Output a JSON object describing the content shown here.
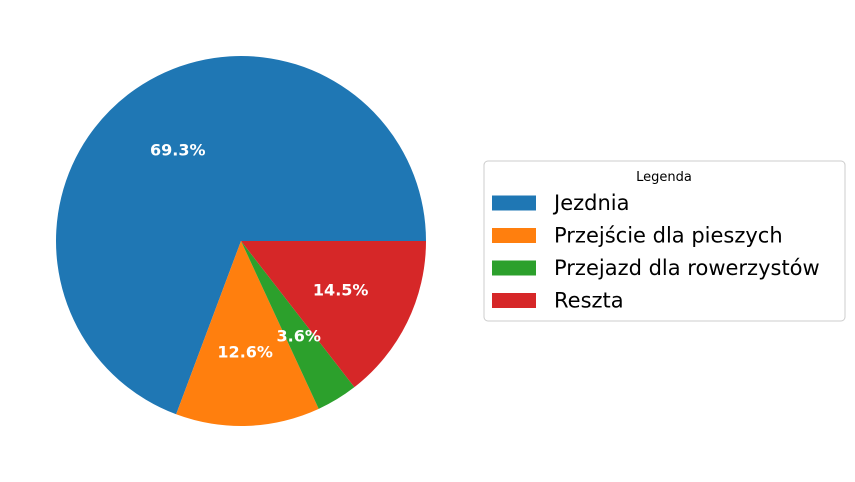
{
  "chart_data": {
    "type": "pie",
    "categories": [
      "Jezdnia",
      "Przejście dla pieszych",
      "Przejazd dla rowerzystów",
      "Reszta"
    ],
    "values": [
      69.3,
      12.6,
      3.6,
      14.5
    ],
    "labels": [
      "69.3%",
      "12.6%",
      "3.6%",
      "14.5%"
    ],
    "colors": [
      "#1f77b4",
      "#ff7f0e",
      "#2ca02c",
      "#d62728"
    ],
    "start_angle_deg": 0,
    "direction": "counterclockwise",
    "legend": {
      "title": "Legenda",
      "placement": "right",
      "entries": [
        "Jezdnia",
        "Przejście dla pieszych",
        "Przejazd dla rowerzystów",
        "Reszta"
      ]
    }
  }
}
